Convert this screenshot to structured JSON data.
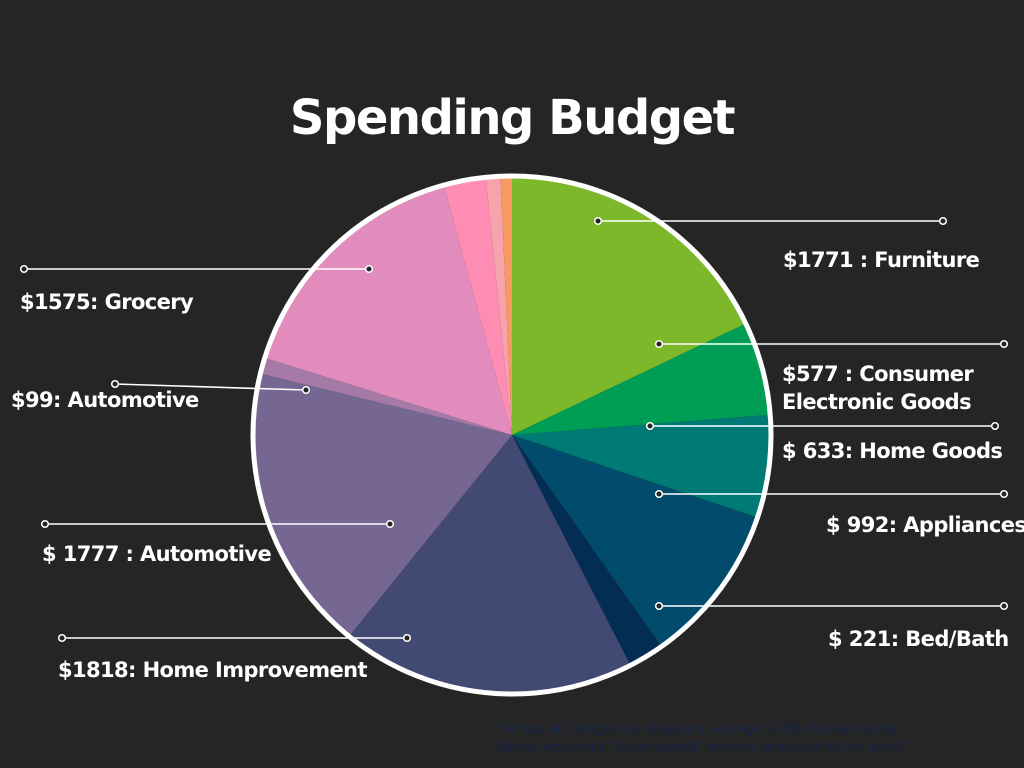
{
  "chart_data": {
    "type": "pie",
    "title": "Spending Budget",
    "slices": [
      {
        "category": "Furniture",
        "value": 1771,
        "label": "$1771 : Furniture",
        "color": "#7cb829"
      },
      {
        "category": "Consumer Electronic Goods",
        "value": 577,
        "label": "$577 : Consumer\nElectronic Goods",
        "color": "#009d55"
      },
      {
        "category": "Home Goods",
        "value": 633,
        "label": "$ 633:  Home Goods",
        "color": "#007a74"
      },
      {
        "category": "Appliances",
        "value": 992,
        "label": "$ 992:  Appliances",
        "color": "#014c6c"
      },
      {
        "category": "Bed/Bath",
        "value": 221,
        "label": "$ 221:  Bed/Bath",
        "color": "#042d54"
      },
      {
        "category": "Home Improvement",
        "value": 1818,
        "label": "$1818:   Home Improvement",
        "color": "#424a73"
      },
      {
        "category": "Automotive",
        "value": 1777,
        "label": "$ 1777 : Automotive",
        "color": "#756792"
      },
      {
        "category": "Automotive",
        "value": 99,
        "label": "$99: Automotive",
        "color": "#a57aa6"
      },
      {
        "category": "Grocery",
        "value": 1575,
        "label": "$1575:   Grocery",
        "color": "#e28cbd"
      },
      {
        "category": "",
        "value": 260,
        "label": "",
        "color": "#ff8db3"
      },
      {
        "category": "",
        "value": 90,
        "label": "",
        "color": "#f7a3ab"
      },
      {
        "category": "",
        "value": 70,
        "label": "",
        "color": "#f79a62"
      }
    ],
    "legend": "none",
    "footnote": [
      "\"Across all categories, shoppers average $10% in total spend",
      "during Amazon's \"Super-spend\" window surrounding the event\""
    ]
  },
  "colors": {
    "background": "#252525",
    "pie_border": "#ffffff",
    "text": "#ffffff"
  }
}
